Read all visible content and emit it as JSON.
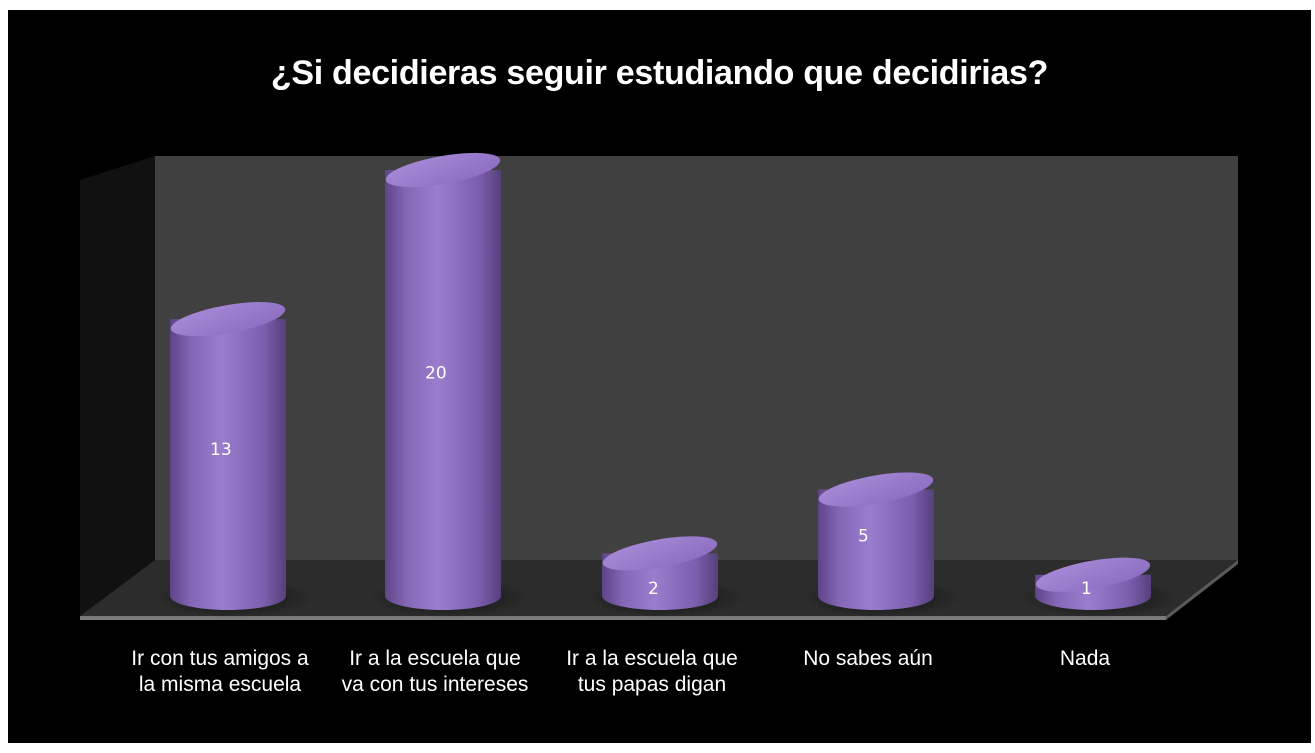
{
  "chart_data": {
    "type": "bar",
    "title": "¿Si decidieras seguir estudiando que decidirias?",
    "categories": [
      "Ir  con tus amigos a la misma escuela",
      "Ir a la escuela que va con tus intereses",
      "Ir a la escuela que tus papas digan",
      "No sabes aún",
      "Nada"
    ],
    "values": [
      13,
      20,
      2,
      5,
      1
    ],
    "data_labels": [
      "13",
      "20",
      "2",
      "5",
      "1"
    ],
    "ylim": [
      0,
      20
    ],
    "grid": false,
    "legend": "none",
    "style": "3d-cylinder",
    "colors": {
      "bar": "#8c6cbf",
      "bar_top": "#9b7ed0",
      "wall": "#404040",
      "floor": "#2a2a2a",
      "background": "#000000",
      "text": "#ffffff"
    }
  }
}
